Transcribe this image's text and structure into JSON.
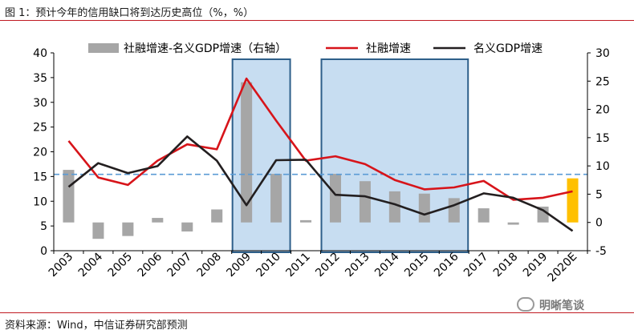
{
  "figure": {
    "title": "图 1：预计今年的信用缺口将到达历史高位（%，%）",
    "source": "资料来源：Wind，中信证券研究部预测",
    "watermark": "明晰笔谈"
  },
  "colors": {
    "bar": "#a6a6a6",
    "bar_highlight": "#ffc000",
    "social_financing": "#d7141a",
    "nominal_gdp": "#231f20",
    "shade_fill": "#bdd7ee",
    "shade_border": "#2e5f8a",
    "reference_line": "#5b9bd5",
    "rule": "#c01b22"
  },
  "chart_data": {
    "type": "bar+line",
    "categories": [
      "2003",
      "2004",
      "2005",
      "2006",
      "2007",
      "2008",
      "2009",
      "2010",
      "2011",
      "2012",
      "2013",
      "2014",
      "2015",
      "2016",
      "2017",
      "2018",
      "2019",
      "2020E"
    ],
    "left_axis": {
      "ylim": [
        0,
        40
      ],
      "ticks": [
        "0",
        "5",
        "10",
        "15",
        "20",
        "25",
        "30",
        "35",
        "40"
      ]
    },
    "right_axis": {
      "ylim": [
        -5,
        30
      ],
      "ticks": [
        "-5",
        "0",
        "5",
        "10",
        "15",
        "20",
        "25",
        "30"
      ]
    },
    "series": [
      {
        "name": "社融增速-名义GDP增速（右轴）",
        "kind": "bar",
        "axis": "right",
        "values": [
          9.3,
          -2.9,
          -2.4,
          0.8,
          -1.6,
          2.3,
          24.8,
          8.6,
          0.4,
          8.6,
          7.3,
          5.5,
          5.1,
          4.3,
          2.5,
          -0.4,
          2.8,
          7.8
        ]
      },
      {
        "name": "社融增速",
        "kind": "line",
        "axis": "left",
        "values": [
          22.2,
          14.8,
          13.3,
          18.2,
          21.5,
          20.5,
          34.8,
          26.3,
          18.2,
          19.1,
          17.5,
          14.3,
          12.4,
          12.8,
          14.1,
          10.3,
          10.7,
          12.0
        ]
      },
      {
        "name": "名义GDP增速",
        "kind": "line",
        "axis": "left",
        "values": [
          12.9,
          17.7,
          15.7,
          17.1,
          23.1,
          18.2,
          9.2,
          18.3,
          18.4,
          11.3,
          11.0,
          9.4,
          7.3,
          9.2,
          11.6,
          10.7,
          8.2,
          4.0
        ]
      }
    ],
    "shaded_periods": [
      [
        "2009",
        "2010"
      ],
      [
        "2012",
        "2016"
      ]
    ],
    "reference_line": {
      "axis": "right",
      "value": 8.5
    },
    "highlight_category": "2020E",
    "grid": false,
    "legend_position": "top"
  }
}
